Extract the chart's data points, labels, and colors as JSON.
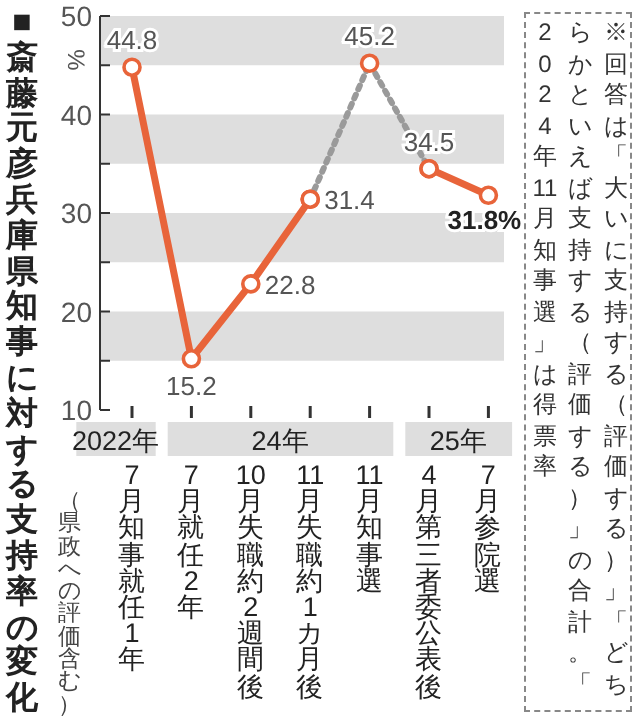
{
  "chart_data": {
    "type": "line",
    "title": "■斎藤元彦兵庫県知事に対する支持率の変化",
    "subtitle": "（県政への評価含む）",
    "ylabel": "%",
    "categories": [
      "7月知事就任1年",
      "7月就任2年",
      "10月失職約2週間後",
      "11月失職約1カ月後",
      "11月知事選",
      "4月第三者委公表後",
      "7月参院選"
    ],
    "series": [
      {
        "color": "#e8643a",
        "line_style": "solid",
        "values": [
          44.8,
          15.2,
          22.8,
          31.4,
          null,
          34.5,
          31.8
        ],
        "value_labels": [
          "44.8",
          "15.2",
          "22.8",
          "31.4",
          null,
          "34.5",
          "31.8%"
        ]
      },
      {
        "color": "#9a9a9a",
        "colors": [
          null,
          null,
          null,
          "#e8643a",
          "#e8643a",
          "#e8643a",
          null
        ],
        "line_style": "dotted",
        "values": [
          null,
          null,
          null,
          31.4,
          45.2,
          34.5,
          null
        ],
        "value_labels": [
          null,
          null,
          null,
          null,
          "45.2",
          null,
          null
        ]
      }
    ],
    "marker": "circle",
    "ylim": [
      10,
      50
    ],
    "yticks": [
      10,
      {
        "value": 15,
        "label": null
      },
      20,
      {
        "value": 25,
        "label": null
      },
      30,
      {
        "value": 35,
        "label": null
      },
      40,
      {
        "value": 45,
        "label": null
      },
      50
    ],
    "bands": [
      {
        "axis": "y",
        "from": 45,
        "to": 50,
        "color": "#dedede"
      },
      {
        "axis": "y",
        "from": 35,
        "to": 40,
        "color": "#dedede"
      },
      {
        "axis": "y",
        "from": 25,
        "to": 30,
        "color": "#dedede"
      },
      {
        "axis": "y",
        "from": 15,
        "to": 20,
        "color": "#dedede"
      }
    ],
    "annotations": [
      "2022年",
      "24年",
      "25年",
      "※回答は「大いに支持する（評価する）」「どちらかといえば支持する（評価する）」の合計。「2024年11月知事選」は得票率"
    ],
    "grid": false
  }
}
